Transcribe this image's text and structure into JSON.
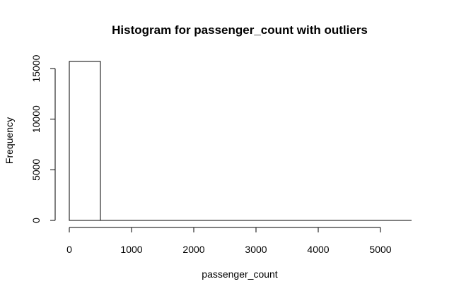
{
  "chart_data": {
    "type": "bar",
    "title": "Histogram for passenger_count with outliers",
    "xlabel": "passenger_count",
    "ylabel": "Frequency",
    "bins": [
      {
        "start": 0,
        "end": 500,
        "frequency": 15700
      },
      {
        "start": 500,
        "end": 1000,
        "frequency": 0
      },
      {
        "start": 1000,
        "end": 1500,
        "frequency": 0
      },
      {
        "start": 1500,
        "end": 2000,
        "frequency": 0
      },
      {
        "start": 2000,
        "end": 2500,
        "frequency": 0
      },
      {
        "start": 2500,
        "end": 3000,
        "frequency": 0
      },
      {
        "start": 3000,
        "end": 3500,
        "frequency": 0
      },
      {
        "start": 3500,
        "end": 4000,
        "frequency": 0
      },
      {
        "start": 4000,
        "end": 4500,
        "frequency": 0
      },
      {
        "start": 4500,
        "end": 5000,
        "frequency": 0
      },
      {
        "start": 5000,
        "end": 5500,
        "frequency": 0
      }
    ],
    "xlim": [
      0,
      5500
    ],
    "ylim": [
      0,
      15700
    ],
    "x_ticks": [
      0,
      1000,
      2000,
      3000,
      4000,
      5000
    ],
    "y_ticks": [
      0,
      5000,
      10000,
      15000
    ],
    "grid": false,
    "legend": "none"
  }
}
